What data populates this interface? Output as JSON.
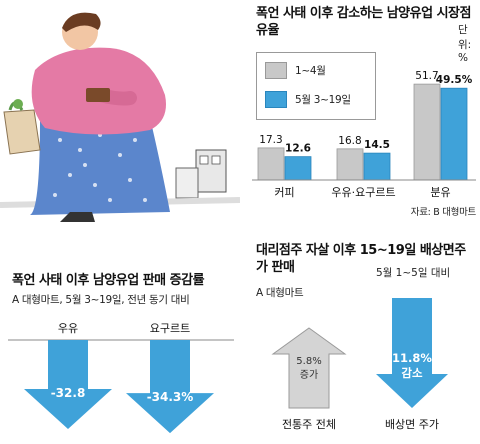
{
  "chart_data": [
    {
      "type": "bar",
      "title": "폭언 사태 이후 감소하는 남양유업 시장점유율",
      "unit_label": "단위: %",
      "categories": [
        "커피",
        "우유·요구르트",
        "분유"
      ],
      "series": [
        {
          "name": "1~4월",
          "color": "#c8c8c8",
          "values": [
            17.3,
            16.8,
            51.7
          ],
          "value_labels": [
            "17.3",
            "16.8",
            "51.7"
          ]
        },
        {
          "name": "5월 3~19일",
          "color": "#3fa2d9",
          "values": [
            12.6,
            14.5,
            49.5
          ],
          "value_labels": [
            "12.6",
            "14.5",
            "49.5%"
          ]
        }
      ],
      "source": "자료: B 대형마트"
    },
    {
      "type": "bar",
      "title": "폭언 사태 이후 남양유업 판매 증감률",
      "subtitle": "A 대형마트, 5월 3~19일, 전년 동기 대비",
      "categories": [
        "우유",
        "요구르트"
      ],
      "values": [
        -32.8,
        -34.3
      ],
      "value_labels": [
        "-32.8",
        "-34.3%"
      ],
      "color": "#3fa2d9"
    },
    {
      "type": "bar",
      "title": "대리점주 자살 이후 15~19일 배상면주가 판매",
      "subtitle": "5월 1~5일 대비",
      "note": "A 대형마트",
      "categories": [
        "전통주 전체",
        "배상면 주가"
      ],
      "values": [
        5.8,
        -11.8
      ],
      "value_labels": [
        [
          "5.8%",
          "증가"
        ],
        [
          "11.8%",
          "감소"
        ]
      ],
      "colors": [
        "#d4d4d4",
        "#3fa2d9"
      ]
    }
  ],
  "colors": {
    "accent": "#3fa2d9",
    "gray": "#c8c8c8"
  }
}
